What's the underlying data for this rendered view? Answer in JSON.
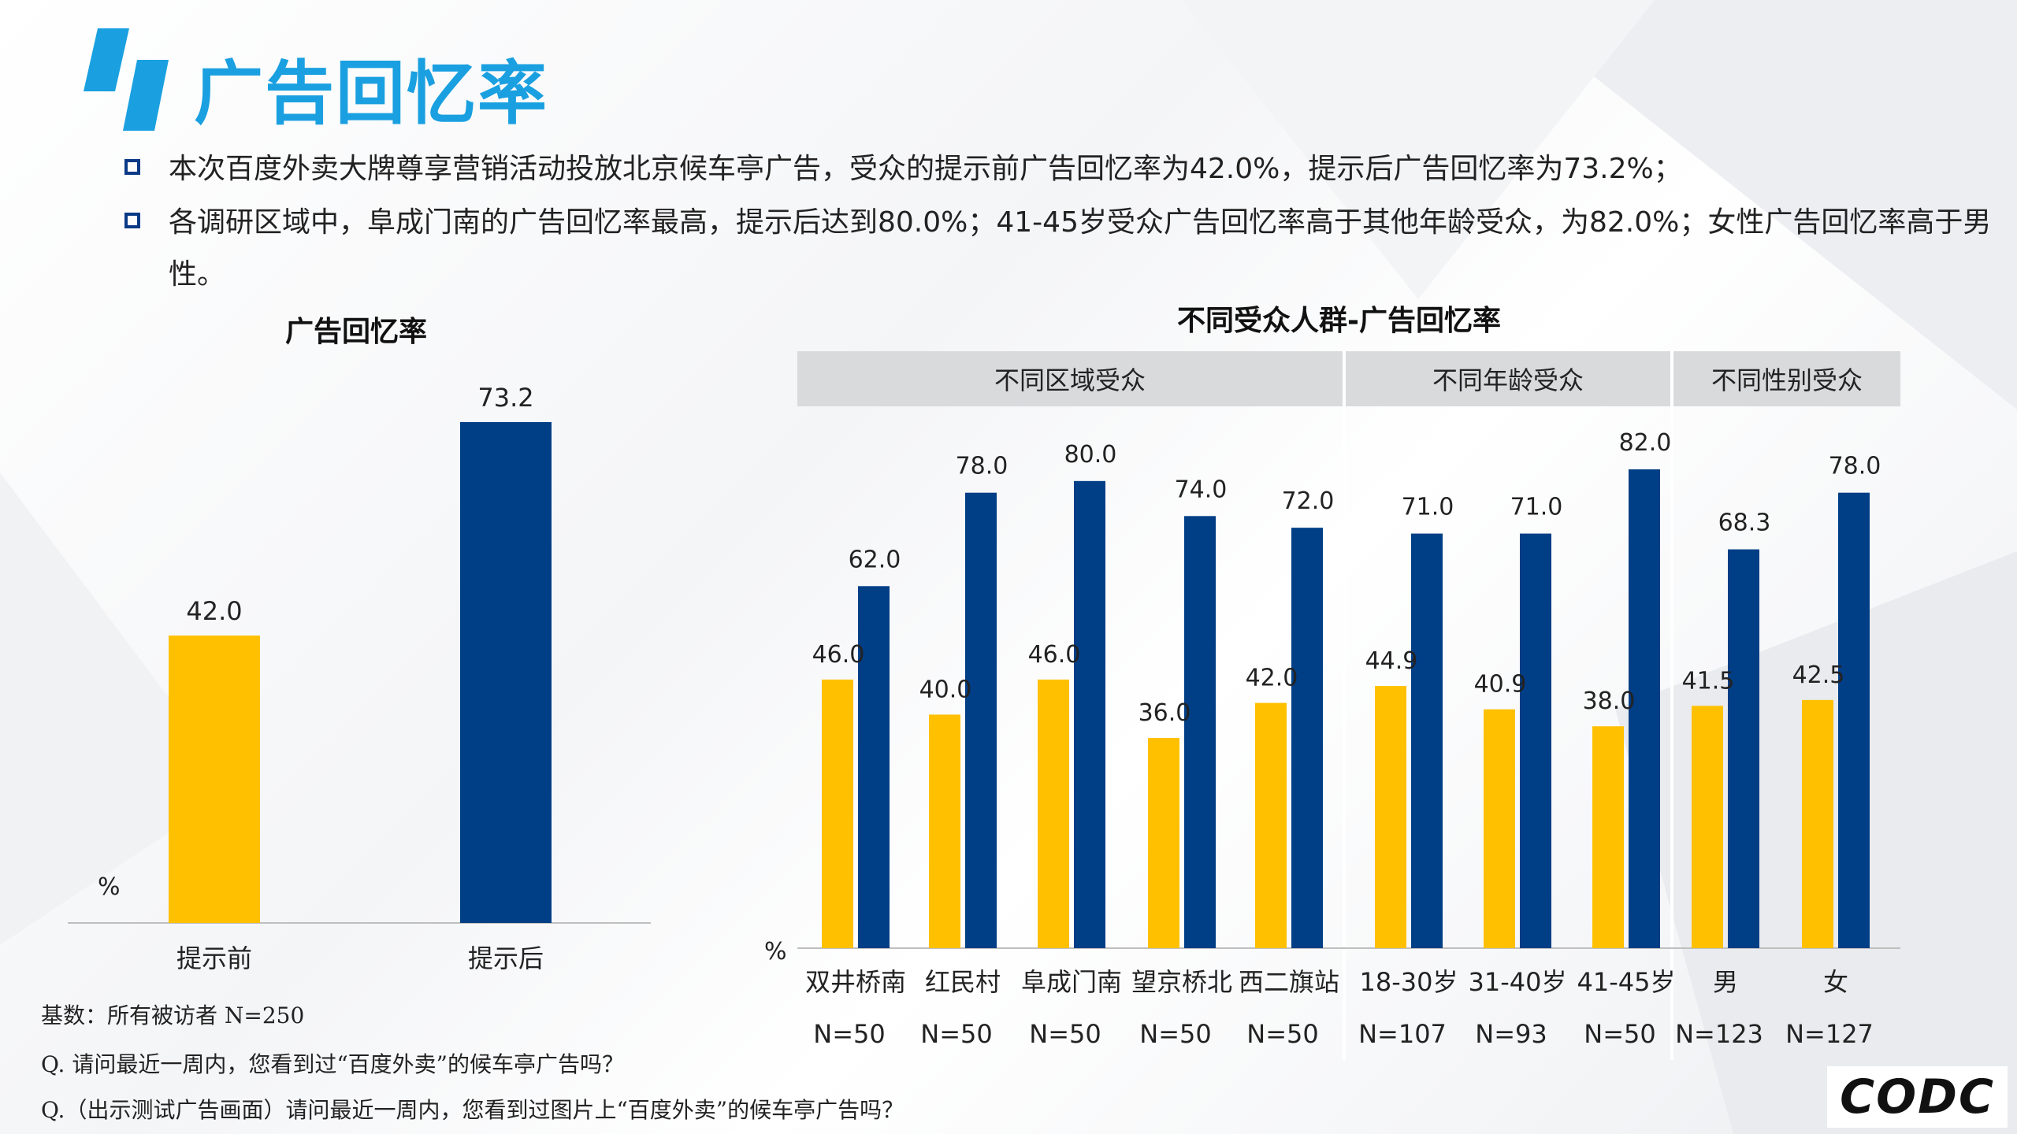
{
  "title": "广告回忆率",
  "bullets": [
    "本次百度外卖大牌尊享营销活动投放北京候车亭广告，受众的提示前广告回忆率为42.0%，提示后广告回忆率为73.2%；",
    "各调研区域中，阜成门南的广告回忆率最高，提示后达到80.0%；41-45岁受众广告回忆率高于其他年龄受众，为82.0%；女性广告回忆率高于男性。"
  ],
  "colors": {
    "before": "#FFC000",
    "after": "#003E86",
    "title": "#1AA0E0"
  },
  "left_chart_title": "广告回忆率",
  "right_chart_title": "不同受众人群-广告回忆率",
  "group_headers": [
    "不同区域受众",
    "不同年龄受众",
    "不同性别受众"
  ],
  "unit": "%",
  "notes": [
    "基数：所有被访者  N=250",
    "Q. 请问最近一周内，您看到过“百度外卖”的候车亭广告吗？",
    "Q.（出示测试广告画面）请问最近一周内，您看到过图片上“百度外卖”的候车亭广告吗？"
  ],
  "brand_logo": "CODC",
  "chart_data": [
    {
      "type": "bar",
      "title": "广告回忆率",
      "categories": [
        "提示前",
        "提示后"
      ],
      "values": [
        42.0,
        73.2
      ],
      "ylabel": "%",
      "ylim": [
        0,
        73.2
      ]
    },
    {
      "type": "bar",
      "title": "不同受众人群-广告回忆率",
      "categories": [
        "双井桥南",
        "红民村",
        "阜成门南",
        "望京桥北",
        "西二旗站",
        "18-30岁",
        "31-40岁",
        "41-45岁",
        "男",
        "女"
      ],
      "sample_sizes": [
        "N=50",
        "N=50",
        "N=50",
        "N=50",
        "N=50",
        "N=107",
        "N=93",
        "N=50",
        "N=123",
        "N=127"
      ],
      "series": [
        {
          "values": [
            46.0,
            40.0,
            46.0,
            36.0,
            42.0,
            44.9,
            40.9,
            38.0,
            41.5,
            42.5
          ]
        },
        {
          "values": [
            62.0,
            78.0,
            80.0,
            74.0,
            72.0,
            71.0,
            71.0,
            82.0,
            68.3,
            78.0
          ]
        }
      ],
      "ylabel": "%",
      "ylim": [
        0,
        82
      ]
    }
  ]
}
